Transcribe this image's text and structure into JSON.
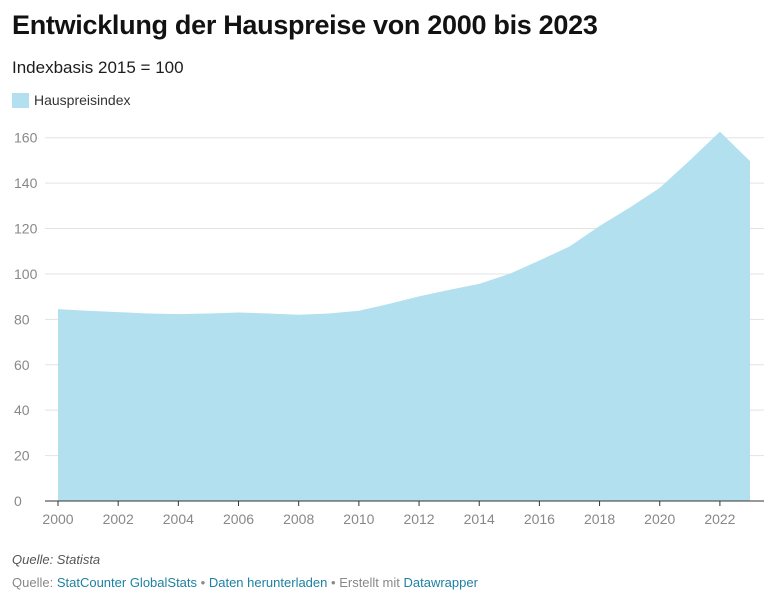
{
  "header": {
    "title": "Entwicklung der Hauspreise von 2000 bis 2023",
    "subtitle": "Indexbasis 2015 = 100"
  },
  "legend": {
    "label": "Hauspreisindex",
    "color": "#b3e0ee"
  },
  "chart_data": {
    "type": "area",
    "x": [
      2000,
      2001,
      2002,
      2003,
      2004,
      2005,
      2006,
      2007,
      2008,
      2009,
      2010,
      2011,
      2012,
      2013,
      2014,
      2015,
      2016,
      2017,
      2018,
      2019,
      2020,
      2021,
      2022,
      2023
    ],
    "series": [
      {
        "name": "Hauspreisindex",
        "values": [
          84.5,
          83.8,
          83.2,
          82.6,
          82.3,
          82.6,
          83.0,
          82.6,
          82.0,
          82.6,
          83.8,
          86.8,
          90.1,
          93.0,
          95.6,
          100.0,
          105.9,
          112.1,
          121.1,
          129.2,
          137.9,
          150.0,
          162.7,
          149.7
        ]
      }
    ],
    "xticks": [
      2000,
      2002,
      2004,
      2006,
      2008,
      2010,
      2012,
      2014,
      2016,
      2018,
      2020,
      2022
    ],
    "yticks": [
      0,
      20,
      40,
      60,
      80,
      100,
      120,
      140,
      160
    ],
    "xlim": [
      2000,
      2023
    ],
    "ylim": [
      0,
      170
    ],
    "grid": true,
    "legend_position": "top-left",
    "color": "#b3e0ee"
  },
  "notes": {
    "source_note": "Quelle: Statista"
  },
  "footer": {
    "source_label": "Quelle:",
    "source_link": "StatCounter GlobalStats",
    "separator": "•",
    "download_link": "Daten herunterladen",
    "created_with": "Erstellt mit",
    "tool_link": "Datawrapper"
  }
}
